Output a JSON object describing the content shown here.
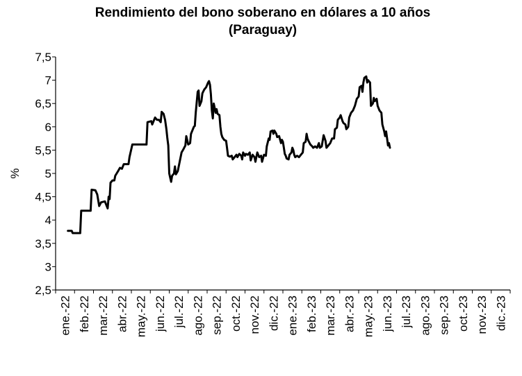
{
  "chart_data": {
    "type": "line",
    "title": "Rendimiento del bono soberano en dólares a 10 años",
    "subtitle": "(Paraguay)",
    "ylabel": "%",
    "xlabel": "",
    "ylim": [
      2.5,
      7.5
    ],
    "y_ticks": [
      "2,5",
      "3",
      "3,5",
      "4",
      "4,5",
      "5",
      "5,5",
      "6",
      "6,5",
      "7",
      "7,5"
    ],
    "x_tick_labels": [
      "ene.-22",
      "feb.-22",
      "mar.-22",
      "abr.-22",
      "may.-22",
      "jun.-22",
      "jul.-22",
      "ago.-22",
      "sep.-22",
      "oct.-22",
      "nov.-22",
      "dic.-22",
      "ene.-23",
      "feb.-23",
      "mar.-23",
      "abr.-23",
      "may.-23",
      "jun.-23",
      "jul.-23",
      "ago.-23",
      "sep.-23",
      "oct.-23",
      "nov.-23",
      "dic.-23"
    ],
    "grid": false,
    "legend": "none",
    "color": "#000000",
    "series": [
      {
        "points": [
          [
            0.65,
            3.77
          ],
          [
            0.85,
            3.77
          ],
          [
            0.9,
            3.72
          ],
          [
            1.3,
            3.72
          ],
          [
            1.35,
            4.2
          ],
          [
            1.85,
            4.2
          ],
          [
            1.9,
            4.65
          ],
          [
            2.1,
            4.64
          ],
          [
            2.2,
            4.55
          ],
          [
            2.3,
            4.3
          ],
          [
            2.4,
            4.38
          ],
          [
            2.6,
            4.4
          ],
          [
            2.75,
            4.25
          ],
          [
            2.8,
            4.5
          ],
          [
            2.85,
            4.45
          ],
          [
            2.9,
            4.8
          ],
          [
            3.0,
            4.85
          ],
          [
            3.1,
            4.85
          ],
          [
            3.15,
            4.95
          ],
          [
            3.3,
            5.05
          ],
          [
            3.4,
            5.12
          ],
          [
            3.5,
            5.1
          ],
          [
            3.6,
            5.2
          ],
          [
            3.85,
            5.2
          ],
          [
            3.9,
            5.35
          ],
          [
            4.05,
            5.62
          ],
          [
            4.8,
            5.62
          ],
          [
            4.85,
            6.1
          ],
          [
            5.05,
            6.12
          ],
          [
            5.1,
            6.05
          ],
          [
            5.25,
            6.2
          ],
          [
            5.35,
            6.15
          ],
          [
            5.45,
            6.15
          ],
          [
            5.55,
            6.1
          ],
          [
            5.6,
            6.32
          ],
          [
            5.7,
            6.28
          ],
          [
            5.78,
            6.15
          ],
          [
            5.85,
            5.95
          ],
          [
            5.9,
            5.75
          ],
          [
            5.95,
            5.6
          ],
          [
            6.0,
            5.0
          ],
          [
            6.1,
            4.82
          ],
          [
            6.15,
            4.95
          ],
          [
            6.25,
            5.0
          ],
          [
            6.3,
            5.15
          ],
          [
            6.35,
            4.98
          ],
          [
            6.45,
            5.05
          ],
          [
            6.55,
            5.25
          ],
          [
            6.65,
            5.45
          ],
          [
            6.75,
            5.52
          ],
          [
            6.85,
            5.6
          ],
          [
            6.9,
            5.8
          ],
          [
            7.0,
            5.62
          ],
          [
            7.1,
            5.65
          ],
          [
            7.15,
            5.85
          ],
          [
            7.3,
            6.0
          ],
          [
            7.35,
            6.02
          ],
          [
            7.4,
            6.3
          ],
          [
            7.5,
            6.75
          ],
          [
            7.55,
            6.78
          ],
          [
            7.6,
            6.45
          ],
          [
            7.7,
            6.55
          ],
          [
            7.75,
            6.72
          ],
          [
            7.85,
            6.8
          ],
          [
            7.95,
            6.85
          ],
          [
            8.05,
            6.95
          ],
          [
            8.1,
            6.98
          ],
          [
            8.15,
            6.9
          ],
          [
            8.2,
            6.7
          ],
          [
            8.25,
            6.35
          ],
          [
            8.3,
            6.18
          ],
          [
            8.35,
            6.5
          ],
          [
            8.45,
            6.3
          ],
          [
            8.5,
            6.38
          ],
          [
            8.55,
            6.28
          ],
          [
            8.65,
            6.25
          ],
          [
            8.7,
            6.0
          ],
          [
            8.75,
            5.85
          ],
          [
            8.8,
            5.78
          ],
          [
            8.9,
            5.72
          ],
          [
            9.0,
            5.7
          ],
          [
            9.05,
            5.55
          ],
          [
            9.1,
            5.38
          ],
          [
            9.2,
            5.36
          ],
          [
            9.3,
            5.38
          ],
          [
            9.35,
            5.3
          ],
          [
            9.45,
            5.35
          ],
          [
            9.55,
            5.4
          ],
          [
            9.6,
            5.35
          ],
          [
            9.7,
            5.42
          ],
          [
            9.8,
            5.38
          ],
          [
            9.85,
            5.3
          ],
          [
            9.9,
            5.45
          ],
          [
            10.0,
            5.38
          ],
          [
            10.05,
            5.42
          ],
          [
            10.15,
            5.4
          ],
          [
            10.25,
            5.45
          ],
          [
            10.3,
            5.28
          ],
          [
            10.4,
            5.4
          ],
          [
            10.5,
            5.35
          ],
          [
            10.55,
            5.25
          ],
          [
            10.6,
            5.35
          ],
          [
            10.65,
            5.45
          ],
          [
            10.75,
            5.35
          ],
          [
            10.85,
            5.38
          ],
          [
            10.9,
            5.25
          ],
          [
            11.0,
            5.4
          ],
          [
            11.1,
            5.38
          ],
          [
            11.15,
            5.58
          ],
          [
            11.25,
            5.75
          ],
          [
            11.3,
            5.72
          ],
          [
            11.35,
            5.9
          ],
          [
            11.45,
            5.92
          ],
          [
            11.5,
            5.85
          ],
          [
            11.55,
            5.92
          ],
          [
            11.65,
            5.85
          ],
          [
            11.7,
            5.78
          ],
          [
            11.8,
            5.8
          ],
          [
            11.9,
            5.65
          ],
          [
            11.95,
            5.72
          ],
          [
            12.0,
            5.68
          ],
          [
            12.05,
            5.55
          ],
          [
            12.1,
            5.42
          ],
          [
            12.15,
            5.38
          ],
          [
            12.2,
            5.32
          ],
          [
            12.3,
            5.3
          ],
          [
            12.35,
            5.4
          ],
          [
            12.45,
            5.45
          ],
          [
            12.5,
            5.55
          ],
          [
            12.55,
            5.5
          ],
          [
            12.6,
            5.4
          ],
          [
            12.65,
            5.35
          ],
          [
            12.75,
            5.38
          ],
          [
            12.85,
            5.35
          ],
          [
            12.95,
            5.4
          ],
          [
            13.05,
            5.45
          ],
          [
            13.1,
            5.65
          ],
          [
            13.2,
            5.68
          ],
          [
            13.25,
            5.85
          ],
          [
            13.3,
            5.75
          ],
          [
            13.35,
            5.7
          ],
          [
            13.45,
            5.62
          ],
          [
            13.55,
            5.58
          ],
          [
            13.6,
            5.55
          ],
          [
            13.7,
            5.58
          ],
          [
            13.8,
            5.55
          ],
          [
            13.9,
            5.65
          ],
          [
            13.95,
            5.55
          ],
          [
            14.05,
            5.58
          ],
          [
            14.15,
            5.82
          ],
          [
            14.25,
            5.7
          ],
          [
            14.3,
            5.55
          ],
          [
            14.4,
            5.6
          ],
          [
            14.5,
            5.65
          ],
          [
            14.6,
            5.75
          ],
          [
            14.7,
            5.75
          ],
          [
            14.75,
            5.95
          ],
          [
            14.85,
            5.98
          ],
          [
            14.9,
            6.15
          ],
          [
            15.0,
            6.2
          ],
          [
            15.05,
            6.25
          ],
          [
            15.15,
            6.12
          ],
          [
            15.2,
            6.08
          ],
          [
            15.3,
            6.05
          ],
          [
            15.35,
            5.95
          ],
          [
            15.45,
            6.0
          ],
          [
            15.5,
            6.2
          ],
          [
            15.6,
            6.3
          ],
          [
            15.7,
            6.35
          ],
          [
            15.8,
            6.45
          ],
          [
            15.9,
            6.6
          ],
          [
            16.0,
            6.65
          ],
          [
            16.05,
            6.85
          ],
          [
            16.15,
            6.88
          ],
          [
            16.2,
            6.75
          ],
          [
            16.25,
            6.95
          ],
          [
            16.3,
            7.05
          ],
          [
            16.4,
            7.08
          ],
          [
            16.45,
            6.95
          ],
          [
            16.5,
            7.0
          ],
          [
            16.6,
            6.95
          ],
          [
            16.65,
            6.45
          ],
          [
            16.75,
            6.5
          ],
          [
            16.8,
            6.62
          ],
          [
            16.85,
            6.55
          ],
          [
            16.95,
            6.6
          ],
          [
            17.0,
            6.45
          ],
          [
            17.1,
            6.35
          ],
          [
            17.2,
            6.3
          ],
          [
            17.25,
            6.05
          ],
          [
            17.35,
            5.9
          ],
          [
            17.4,
            5.8
          ],
          [
            17.45,
            5.9
          ],
          [
            17.5,
            5.75
          ],
          [
            17.55,
            5.6
          ],
          [
            17.6,
            5.65
          ],
          [
            17.65,
            5.55
          ]
        ]
      }
    ]
  }
}
